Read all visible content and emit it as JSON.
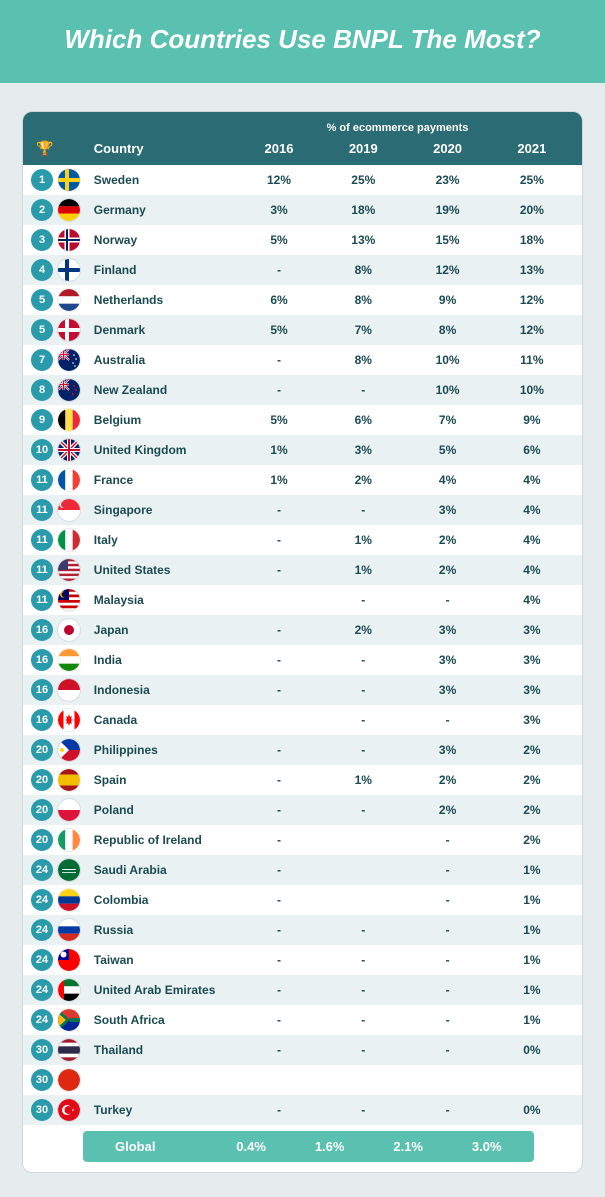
{
  "title": "Which Countries Use BNPL The Most?",
  "colors": {
    "banner_bg": "#5ac0b0",
    "header_bg": "#2a6b74",
    "rank_badge_bg": "#2a9bab",
    "row_alt_bg": "#e9f1f2",
    "page_bg": "#e6ebee",
    "text": "#1b4b52"
  },
  "table": {
    "super_header": "% of ecommerce payments",
    "columns": [
      "Country",
      "2016",
      "2019",
      "2020",
      "2021"
    ],
    "rows": [
      {
        "rank": 1,
        "country": "Sweden",
        "flag": "se",
        "v": [
          "12%",
          "25%",
          "23%",
          "25%"
        ]
      },
      {
        "rank": 2,
        "country": "Germany",
        "flag": "de",
        "v": [
          "3%",
          "18%",
          "19%",
          "20%"
        ]
      },
      {
        "rank": 3,
        "country": "Norway",
        "flag": "no",
        "v": [
          "5%",
          "13%",
          "15%",
          "18%"
        ]
      },
      {
        "rank": 4,
        "country": "Finland",
        "flag": "fi",
        "v": [
          "-",
          "8%",
          "12%",
          "13%"
        ]
      },
      {
        "rank": 5,
        "country": "Netherlands",
        "flag": "nl",
        "v": [
          "6%",
          "8%",
          "9%",
          "12%"
        ]
      },
      {
        "rank": 5,
        "country": "Denmark",
        "flag": "dk",
        "v": [
          "5%",
          "7%",
          "8%",
          "12%"
        ]
      },
      {
        "rank": 7,
        "country": "Australia",
        "flag": "au",
        "v": [
          "-",
          "8%",
          "10%",
          "11%"
        ]
      },
      {
        "rank": 8,
        "country": "New Zealand",
        "flag": "nz",
        "v": [
          "-",
          "-",
          "10%",
          "10%"
        ]
      },
      {
        "rank": 9,
        "country": "Belgium",
        "flag": "be",
        "v": [
          "5%",
          "6%",
          "7%",
          "9%"
        ]
      },
      {
        "rank": 10,
        "country": "United Kingdom",
        "flag": "gb",
        "v": [
          "1%",
          "3%",
          "5%",
          "6%"
        ]
      },
      {
        "rank": 11,
        "country": "France",
        "flag": "fr",
        "v": [
          "1%",
          "2%",
          "4%",
          "4%"
        ]
      },
      {
        "rank": 11,
        "country": "Singapore",
        "flag": "sg",
        "v": [
          "-",
          "-",
          "3%",
          "4%"
        ]
      },
      {
        "rank": 11,
        "country": "Italy",
        "flag": "it",
        "v": [
          "-",
          "1%",
          "2%",
          "4%"
        ]
      },
      {
        "rank": 11,
        "country": "United States",
        "flag": "us",
        "v": [
          "-",
          "1%",
          "2%",
          "4%"
        ]
      },
      {
        "rank": 11,
        "country": "Malaysia",
        "flag": "my",
        "v": [
          "",
          "-",
          "-",
          "4%"
        ]
      },
      {
        "rank": 16,
        "country": "Japan",
        "flag": "jp",
        "v": [
          "-",
          "2%",
          "3%",
          "3%"
        ]
      },
      {
        "rank": 16,
        "country": "India",
        "flag": "in",
        "v": [
          "-",
          "-",
          "3%",
          "3%"
        ]
      },
      {
        "rank": 16,
        "country": "Indonesia",
        "flag": "id",
        "v": [
          "-",
          "-",
          "3%",
          "3%"
        ]
      },
      {
        "rank": 16,
        "country": "Canada",
        "flag": "ca",
        "v": [
          "",
          "-",
          "-",
          "3%"
        ]
      },
      {
        "rank": 20,
        "country": "Philippines",
        "flag": "ph",
        "v": [
          "-",
          "-",
          "3%",
          "2%"
        ]
      },
      {
        "rank": 20,
        "country": "Spain",
        "flag": "es",
        "v": [
          "-",
          "1%",
          "2%",
          "2%"
        ]
      },
      {
        "rank": 20,
        "country": "Poland",
        "flag": "pl",
        "v": [
          "-",
          "-",
          "2%",
          "2%"
        ]
      },
      {
        "rank": 20,
        "country": "Republic of Ireland",
        "flag": "ie",
        "v": [
          "-",
          "",
          "-",
          "2%"
        ]
      },
      {
        "rank": 24,
        "country": "Saudi Arabia",
        "flag": "sa",
        "v": [
          "-",
          "",
          "-",
          "1%"
        ]
      },
      {
        "rank": 24,
        "country": "Colombia",
        "flag": "co",
        "v": [
          "-",
          "",
          "-",
          "1%"
        ]
      },
      {
        "rank": 24,
        "country": "Russia",
        "flag": "ru",
        "v": [
          "-",
          "-",
          "-",
          "1%"
        ]
      },
      {
        "rank": 24,
        "country": "Taiwan",
        "flag": "tw",
        "v": [
          "-",
          "-",
          "-",
          "1%"
        ]
      },
      {
        "rank": 24,
        "country": "United Arab Emirates",
        "flag": "ae",
        "v": [
          "-",
          "-",
          "-",
          "1%"
        ]
      },
      {
        "rank": 24,
        "country": "South Africa",
        "flag": "za",
        "v": [
          "-",
          "-",
          "-",
          "1%"
        ]
      },
      {
        "rank": 30,
        "country": "Thailand",
        "flag": "th",
        "v": [
          "-",
          "-",
          "-",
          "0%"
        ]
      },
      {
        "rank": 30,
        "country": "",
        "flag": "hk",
        "v": [
          "",
          "",
          "",
          ""
        ]
      },
      {
        "rank": 30,
        "country": "Turkey",
        "flag": "tr",
        "v": [
          "-",
          "-",
          "-",
          "0%"
        ]
      }
    ],
    "global": {
      "label": "Global",
      "v": [
        "0.4%",
        "1.6%",
        "2.1%",
        "3.0%"
      ]
    }
  },
  "flags": {
    "se": [
      "#0059a3",
      "#fcd116"
    ],
    "de": [
      "#000000",
      "#dd0000",
      "#ffce00"
    ],
    "no": [
      "#ba0c2f",
      "#ffffff",
      "#00205b"
    ],
    "fi": [
      "#ffffff",
      "#003580"
    ],
    "nl": [
      "#ae1c28",
      "#ffffff",
      "#21468b"
    ],
    "dk": [
      "#c60c30",
      "#ffffff"
    ],
    "au": [
      "#012169",
      "#ffffff",
      "#e4002b"
    ],
    "nz": [
      "#012169",
      "#c8102e",
      "#ffffff"
    ],
    "be": [
      "#000000",
      "#fae042",
      "#ed2939"
    ],
    "gb": [
      "#012169",
      "#ffffff",
      "#c8102e"
    ],
    "fr": [
      "#0055a4",
      "#ffffff",
      "#ef4135"
    ],
    "sg": [
      "#ed2939",
      "#ffffff"
    ],
    "it": [
      "#009246",
      "#ffffff",
      "#ce2b37"
    ],
    "us": [
      "#b22234",
      "#ffffff",
      "#3c3b6e"
    ],
    "my": [
      "#cc0001",
      "#ffffff",
      "#010066",
      "#ffcc00"
    ],
    "jp": [
      "#ffffff",
      "#bc002d"
    ],
    "in": [
      "#ff9933",
      "#ffffff",
      "#138808"
    ],
    "id": [
      "#ce1126",
      "#ffffff"
    ],
    "ca": [
      "#ff0000",
      "#ffffff"
    ],
    "ph": [
      "#0038a8",
      "#ce1126",
      "#ffffff",
      "#fcd116"
    ],
    "es": [
      "#aa151b",
      "#f1bf00"
    ],
    "pl": [
      "#ffffff",
      "#dc143c"
    ],
    "ie": [
      "#169b62",
      "#ffffff",
      "#ff883e"
    ],
    "sa": [
      "#006c35",
      "#ffffff"
    ],
    "co": [
      "#fcd116",
      "#003893",
      "#ce1126"
    ],
    "ru": [
      "#ffffff",
      "#0039a6",
      "#d52b1e"
    ],
    "tw": [
      "#fe0000",
      "#000095",
      "#ffffff"
    ],
    "ae": [
      "#00732f",
      "#ffffff",
      "#000000",
      "#ff0000"
    ],
    "za": [
      "#007a4d",
      "#ffb612",
      "#de3831",
      "#002395",
      "#000000"
    ],
    "th": [
      "#a51931",
      "#ffffff",
      "#2d2a4a"
    ],
    "hk": [
      "#de2910",
      "#ffffff"
    ],
    "tr": [
      "#e30a17",
      "#ffffff"
    ]
  }
}
